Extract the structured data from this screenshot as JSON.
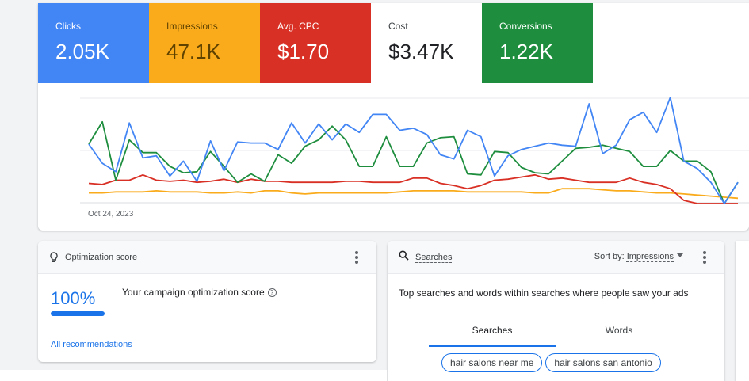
{
  "metrics": [
    {
      "label": "Clicks",
      "value": "2.05K"
    },
    {
      "label": "Impressions",
      "value": "47.1K"
    },
    {
      "label": "Avg. CPC",
      "value": "$1.70"
    },
    {
      "label": "Cost",
      "value": "$3.47K"
    },
    {
      "label": "Conversions",
      "value": "1.22K"
    }
  ],
  "chart": {
    "date_label": "Oct 24, 2023",
    "colors": {
      "clicks": "#4285f4",
      "impressions": "#f9ab1c",
      "cpc": "#d93025",
      "conversions": "#1e8e3e",
      "grid": "#e8eaed"
    }
  },
  "chart_data": {
    "type": "line",
    "xlabel": "",
    "ylabel": "",
    "ylim": [
      0,
      100
    ],
    "series": [
      {
        "values": [
          56,
          38,
          30,
          76,
          43,
          45,
          26,
          40,
          21,
          59,
          31,
          58,
          57,
          57,
          51,
          76,
          57,
          75,
          60,
          75,
          67,
          84,
          84,
          69,
          71,
          65,
          46,
          42,
          69,
          63,
          26,
          45,
          51,
          54,
          57,
          55,
          54,
          94,
          47,
          55,
          79,
          86,
          67,
          100,
          40,
          33,
          20,
          0,
          20
        ]
      },
      {
        "values": [
          56,
          77,
          22,
          60,
          48,
          48,
          35,
          29,
          30,
          49,
          35,
          20,
          28,
          21,
          46,
          38,
          54,
          60,
          73,
          60,
          35,
          35,
          63,
          35,
          35,
          57,
          62,
          63,
          28,
          27,
          49,
          48,
          34,
          29,
          28,
          40,
          52,
          53,
          55,
          52,
          49,
          35,
          35,
          50,
          40,
          40,
          30,
          0,
          20
        ]
      },
      {
        "values": [
          19,
          18,
          22,
          22,
          27,
          22,
          21,
          22,
          20,
          21,
          23,
          20,
          23,
          21,
          21,
          20,
          20,
          20,
          20,
          21,
          21,
          20,
          20,
          20,
          24,
          24,
          19,
          17,
          14,
          17,
          22,
          23,
          25,
          27,
          23,
          24,
          22,
          20,
          20,
          20,
          24,
          20,
          18,
          14,
          3,
          0,
          0,
          0,
          0
        ]
      },
      {
        "values": [
          10,
          10,
          11,
          11,
          11,
          12,
          11,
          11,
          11,
          10,
          10,
          11,
          10,
          12,
          12,
          10,
          9,
          10,
          10,
          10,
          10,
          10,
          10,
          11,
          12,
          12,
          12,
          12,
          11,
          11,
          11,
          11,
          11,
          10,
          10,
          14,
          14,
          14,
          13,
          12,
          12,
          11,
          10,
          10,
          9,
          8,
          7,
          6,
          5
        ]
      }
    ]
  },
  "optimization": {
    "title": "Optimization score",
    "score": "100%",
    "score_fraction": 1.0,
    "description": "Your campaign optimization score",
    "link": "All recommendations"
  },
  "searches": {
    "title": "Searches",
    "sort_label": "Sort by:",
    "sort_value": "Impressions",
    "description": "Top searches and words within searches where people saw your ads",
    "tabs": [
      "Searches",
      "Words"
    ],
    "chips": [
      "hair salons near me",
      "hair salons san antonio"
    ]
  }
}
